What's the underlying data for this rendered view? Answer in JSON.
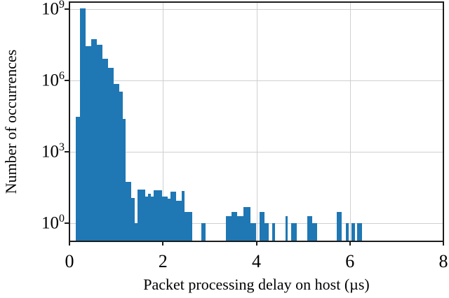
{
  "figure": {
    "bar_color": "#1f77b4",
    "grid_color": "#cfcfcf",
    "spine_color": "#1c1c1c",
    "background": "#ffffff"
  },
  "chart_data": {
    "type": "bar",
    "subtype": "histogram",
    "title": "",
    "xlabel": "Packet processing delay on host (µs)",
    "ylabel": "Number of occurrences",
    "yscale": "log",
    "grid": true,
    "legend": "none",
    "xlim": [
      0,
      8
    ],
    "ylim_log10": [
      -0.757,
      9.301
    ],
    "x_ticks": [
      0,
      2,
      4,
      6,
      8
    ],
    "y_tick_exponents": [
      0,
      3,
      6,
      9
    ],
    "y_tick_base": "10",
    "bars": [
      {
        "x0": 0.14,
        "x1": 0.22,
        "count": 30000
      },
      {
        "x0": 0.22,
        "x1": 0.34,
        "count": 1100000000
      },
      {
        "x0": 0.34,
        "x1": 0.47,
        "count": 28000000
      },
      {
        "x0": 0.47,
        "x1": 0.59,
        "count": 55000000
      },
      {
        "x0": 0.59,
        "x1": 0.71,
        "count": 32000000
      },
      {
        "x0": 0.71,
        "x1": 0.83,
        "count": 8500000
      },
      {
        "x0": 0.83,
        "x1": 0.95,
        "count": 3500000
      },
      {
        "x0": 0.95,
        "x1": 1.07,
        "count": 750000
      },
      {
        "x0": 1.07,
        "x1": 1.14,
        "count": 350000
      },
      {
        "x0": 1.14,
        "x1": 1.2,
        "count": 25000
      },
      {
        "x0": 1.2,
        "x1": 1.32,
        "count": 55
      },
      {
        "x0": 1.32,
        "x1": 1.39,
        "count": 12
      },
      {
        "x0": 1.39,
        "x1": 1.46,
        "count": 1
      },
      {
        "x0": 1.46,
        "x1": 1.62,
        "count": 27
      },
      {
        "x0": 1.62,
        "x1": 1.68,
        "count": 13
      },
      {
        "x0": 1.68,
        "x1": 1.74,
        "count": 17
      },
      {
        "x0": 1.74,
        "x1": 1.8,
        "count": 13
      },
      {
        "x0": 1.8,
        "x1": 1.98,
        "count": 25
      },
      {
        "x0": 1.98,
        "x1": 2.1,
        "count": 13
      },
      {
        "x0": 2.1,
        "x1": 2.16,
        "count": 11
      },
      {
        "x0": 2.16,
        "x1": 2.28,
        "count": 22
      },
      {
        "x0": 2.28,
        "x1": 2.4,
        "count": 9
      },
      {
        "x0": 2.4,
        "x1": 2.46,
        "count": 23
      },
      {
        "x0": 2.46,
        "x1": 2.63,
        "count": 3
      },
      {
        "x0": 2.82,
        "x1": 2.91,
        "count": 1
      },
      {
        "x0": 3.35,
        "x1": 3.47,
        "count": 2
      },
      {
        "x0": 3.47,
        "x1": 3.59,
        "count": 3
      },
      {
        "x0": 3.59,
        "x1": 3.72,
        "count": 2
      },
      {
        "x0": 3.72,
        "x1": 3.87,
        "count": 5
      },
      {
        "x0": 3.87,
        "x1": 4.0,
        "count": 1
      },
      {
        "x0": 4.06,
        "x1": 4.17,
        "count": 3
      },
      {
        "x0": 4.17,
        "x1": 4.27,
        "count": 1
      },
      {
        "x0": 4.34,
        "x1": 4.4,
        "count": 1
      },
      {
        "x0": 4.62,
        "x1": 4.67,
        "count": 2
      },
      {
        "x0": 4.74,
        "x1": 4.87,
        "count": 1
      },
      {
        "x0": 5.09,
        "x1": 5.2,
        "count": 2
      },
      {
        "x0": 5.2,
        "x1": 5.3,
        "count": 1
      },
      {
        "x0": 5.72,
        "x1": 5.83,
        "count": 3
      },
      {
        "x0": 5.92,
        "x1": 5.98,
        "count": 1
      },
      {
        "x0": 6.04,
        "x1": 6.11,
        "count": 1
      },
      {
        "x0": 6.16,
        "x1": 6.26,
        "count": 1
      }
    ]
  }
}
